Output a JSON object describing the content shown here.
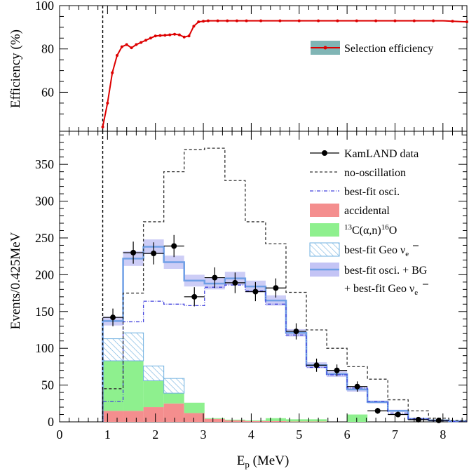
{
  "chart_data": [
    {
      "type": "line",
      "panel": "efficiency",
      "ylabel": "Efficiency (%)",
      "xlim": [
        0,
        8.5
      ],
      "ylim": [
        42,
        100
      ],
      "yticks": [
        60,
        80,
        100
      ],
      "threshold_x": 0.9,
      "legend": {
        "placement": "top-right",
        "label": "Selection efficiency"
      },
      "colors": {
        "line": "#dd0000",
        "band": "#6aa8a8"
      },
      "series": [
        {
          "name": "Selection efficiency",
          "x": [
            0.9,
            1.0,
            1.1,
            1.2,
            1.3,
            1.4,
            1.5,
            1.6,
            1.7,
            1.8,
            1.9,
            2.0,
            2.1,
            2.2,
            2.3,
            2.4,
            2.5,
            2.6,
            2.7,
            2.8,
            2.9,
            3.0,
            3.1,
            3.2,
            3.3,
            3.4,
            3.5,
            3.6,
            3.7,
            3.8,
            3.9,
            4.0,
            4.2,
            4.4,
            4.6,
            4.8,
            5.0,
            5.2,
            5.4,
            5.6,
            5.8,
            6.0,
            6.2,
            6.4,
            6.6,
            6.8,
            7.0,
            7.2,
            7.4,
            7.6,
            7.8,
            8.0,
            8.2,
            8.4,
            8.5
          ],
          "values": [
            44,
            55,
            69,
            77,
            81,
            82,
            80.5,
            82,
            83,
            84,
            85,
            86,
            86.2,
            86.3,
            86.5,
            86.8,
            86.5,
            85.5,
            86,
            90.5,
            92.5,
            92.8,
            93,
            93,
            93,
            93,
            93,
            93,
            93,
            93,
            93,
            93,
            93,
            93,
            93,
            93,
            93,
            93,
            93,
            93,
            93,
            93,
            93,
            93,
            93,
            93,
            93,
            93,
            93,
            93,
            93,
            93,
            92.8,
            92.6,
            92.5
          ]
        }
      ]
    },
    {
      "type": "bar",
      "panel": "spectrum",
      "xlabel": "E_p (MeV)",
      "xlabel_main": "E",
      "xlabel_sub": "p",
      "xlabel_unit": " (MeV)",
      "ylabel": "Events/0.425MeV",
      "xlim": [
        0,
        8.5
      ],
      "ylim": [
        0,
        395
      ],
      "xticks": [
        0,
        1,
        2,
        3,
        4,
        5,
        6,
        7,
        8
      ],
      "yticks": [
        0,
        50,
        100,
        150,
        200,
        250,
        300,
        350
      ],
      "threshold_x": 0.9,
      "bin_edges": [
        0.9,
        1.325,
        1.75,
        2.175,
        2.6,
        3.025,
        3.45,
        3.875,
        4.3,
        4.725,
        5.15,
        5.575,
        6.0,
        6.425,
        6.85,
        7.275,
        7.7,
        8.125,
        8.5
      ],
      "legend_placement": "top-right",
      "colors": {
        "data": "#000000",
        "no_osc": "#333333",
        "best_fit": "#4444dd",
        "accidental": "#f48e8e",
        "carbon": "#8ef08e",
        "geo": "#6fb0e0",
        "total": "#6f9fe6",
        "total_band": "#c4c4f5"
      },
      "series": [
        {
          "name": "KamLAND data",
          "values": [
            142,
            230,
            229,
            239,
            170,
            196,
            189,
            177,
            182,
            123,
            77,
            70,
            48,
            15,
            10,
            3,
            2,
            0
          ],
          "errors": [
            12,
            15,
            15,
            15,
            13,
            14,
            14,
            13,
            13,
            11,
            9,
            8,
            7,
            4,
            3,
            2,
            1.5,
            0
          ]
        },
        {
          "name": "no-oscillation",
          "values": [
            45,
            175,
            272,
            340,
            370,
            372,
            328,
            272,
            242,
            176,
            125,
            100,
            75,
            58,
            30,
            15,
            5,
            2
          ]
        },
        {
          "name": "best-fit osci.",
          "values": [
            28,
            136,
            164,
            160,
            158,
            183,
            186,
            178,
            160,
            118,
            74,
            64,
            46,
            28,
            12,
            4,
            1.5,
            0.5
          ]
        },
        {
          "name": "accidental",
          "values": [
            15,
            15,
            20,
            25,
            12,
            4,
            2,
            1,
            1,
            0.5,
            0.5,
            0,
            0,
            0,
            0,
            0,
            0,
            0
          ]
        },
        {
          "name": "13C(α,n)16O",
          "label_parts": {
            "pre": "",
            "sup1": "13",
            "mid": "C(α,n)",
            "sup2": "16",
            "post": "O"
          },
          "values": [
            68,
            68,
            36,
            14,
            14,
            1,
            1,
            1,
            4,
            3,
            3,
            0,
            10,
            0,
            0,
            0,
            0,
            0
          ]
        },
        {
          "name": "best-fit Geo ν̄e",
          "label_parts": {
            "text": "best-fit Geo ν",
            "sub": "e"
          },
          "values": [
            30,
            38,
            20,
            20,
            0,
            0,
            0,
            0,
            0,
            0,
            0,
            0,
            0,
            0,
            0,
            0,
            0,
            0
          ]
        },
        {
          "name": "best-fit osci. + BG + best-fit Geo ν̄e",
          "label_line1": "best-fit osci. + BG",
          "label_line2": {
            "text": "+ best-fit Geo ν",
            "sub": "e"
          },
          "values": [
            137,
            222,
            238,
            217,
            192,
            188,
            195,
            184,
            165,
            121,
            77,
            65,
            44,
            27,
            15,
            4,
            2,
            1
          ],
          "band": [
            6,
            10,
            10,
            9,
            8,
            8,
            9,
            8,
            7,
            5,
            4,
            4,
            3,
            2,
            1.5,
            1,
            0.5,
            0.5
          ]
        }
      ]
    }
  ]
}
